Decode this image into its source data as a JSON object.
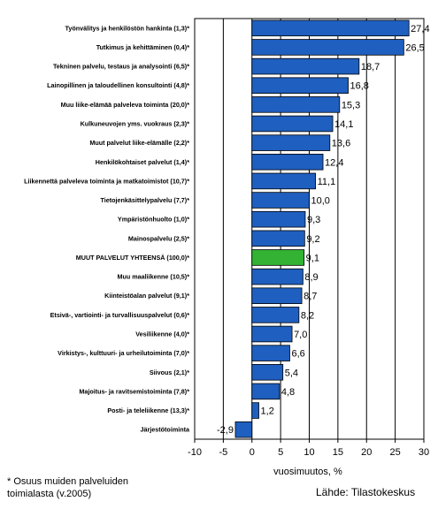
{
  "chart_data": {
    "type": "bar",
    "orientation": "horizontal",
    "categories": [
      "Työnvälitys ja henkilöstön hankinta (1,3)*",
      "Tutkimus ja kehittäminen (0,4)*",
      "Tekninen palvelu, testaus ja analysointi (6,5)*",
      "Lainopillinen ja taloudellinen konsultointi (4,8)*",
      "Muu liike-elämää palveleva toiminta (20,0)*",
      "Kulkuneuvojen yms. vuokraus (2,3)*",
      "Muut palvelut liike-elämälle (2,2)*",
      "Henkilökohtaiset palvelut (1,4)*",
      "Liikennettä palveleva toiminta ja matkatoimistot (10,7)*",
      "Tietojenkäsittelypalvelu (7,7)*",
      "Ympäristönhuolto (1,0)*",
      "Mainospalvelu (2,5)*",
      "MUUT PALVELUT YHTEENSÄ (100,0)*",
      "Muu maaliikenne (10,5)*",
      "Kiinteistöalan palvelut (9,1)*",
      "Etsivä-, vartiointi- ja turvallisuuspalvelut (0,6)*",
      "Vesiliikenne (4,0)*",
      "Virkistys-, kulttuuri- ja urheilutoiminta (7,0)*",
      "Siivous (2,1)*",
      "Majoitus- ja ravitsemistoiminta (7,8)*",
      "Posti- ja teleliikenne (13,3)*",
      "Järjestötoiminta"
    ],
    "values": [
      27.4,
      26.5,
      18.7,
      16.8,
      15.3,
      14.1,
      13.6,
      12.4,
      11.1,
      10.0,
      9.3,
      9.2,
      9.1,
      8.9,
      8.7,
      8.2,
      7.0,
      6.6,
      5.4,
      4.8,
      1.2,
      -2.9
    ],
    "value_labels": [
      "27,4",
      "26,5",
      "18,7",
      "16,8",
      "15,3",
      "14,1",
      "13,6",
      "12,4",
      "11,1",
      "10,0",
      "9,3",
      "9,2",
      "9,1",
      "8,9",
      "8,7",
      "8,2",
      "7,0",
      "6,6",
      "5,4",
      "4,8",
      "1,2",
      "-2,9"
    ],
    "highlight_index": 12,
    "xlim": [
      -10,
      30
    ],
    "xticks": [
      -10,
      -5,
      0,
      5,
      10,
      15,
      20,
      25,
      30
    ],
    "xlabel": "vuosimuutos, %",
    "grid": "vertical",
    "colors": {
      "bar": "#1f5fbf",
      "highlight": "#33b233",
      "bar_edge": "#000000"
    }
  },
  "footnote": [
    "* Osuus muiden palveluiden",
    "toimialasta (v.2005)"
  ],
  "source": "Lähde: Tilastokeskus"
}
